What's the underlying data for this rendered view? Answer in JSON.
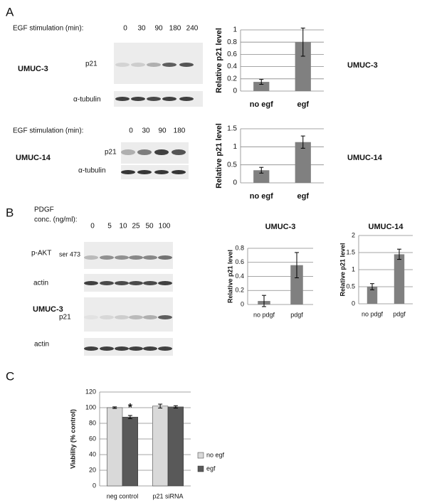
{
  "figure": {
    "panel_a": {
      "label": "A",
      "blot1": {
        "header": "EGF stimulation (min):",
        "lanes": [
          "0",
          "30",
          "90",
          "180",
          "240"
        ],
        "cell_line": "UMUC-3",
        "rows": [
          "p21",
          "α-tubulin"
        ]
      },
      "blot2": {
        "header": "EGF stimulation (min):",
        "lanes": [
          "0",
          "30",
          "90",
          "180"
        ],
        "cell_line": "UMUC-14",
        "rows": [
          "p21",
          "α-tubulin"
        ]
      }
    },
    "panel_b": {
      "label": "B",
      "header_line1": "PDGF",
      "header_line2": "conc. (ng/ml):",
      "lanes": [
        "0",
        "5",
        "10",
        "25",
        "50",
        "100"
      ],
      "cell_line": "UMUC-3",
      "rows": [
        {
          "main": "p-AKT",
          "sub": "ser 473"
        },
        "actin",
        "p21",
        "actin"
      ]
    },
    "panel_c": {
      "label": "C"
    }
  },
  "chart_data": [
    {
      "type": "bar",
      "side_label": "UMUC-3",
      "y_label": "Relative p21 level",
      "categories": [
        "no egf",
        "egf"
      ],
      "values": [
        0.15,
        0.8
      ],
      "errors": [
        0.04,
        0.23
      ],
      "color": "#808080",
      "ylim": [
        0,
        1
      ],
      "yticks": [
        0,
        0.2,
        0.4,
        0.6,
        0.8,
        1
      ],
      "grid": true
    },
    {
      "type": "bar",
      "side_label": "UMUC-14",
      "y_label": "Relative p21 level",
      "categories": [
        "no egf",
        "egf"
      ],
      "values": [
        0.35,
        1.13
      ],
      "errors": [
        0.08,
        0.17
      ],
      "color": "#808080",
      "ylim": [
        0,
        1.5
      ],
      "yticks": [
        0,
        0.5,
        1,
        1.5
      ],
      "grid": true
    },
    {
      "type": "bar",
      "title": "UMUC-3",
      "y_label": "Relative p21 level",
      "categories": [
        "no pdgf",
        "pdgf"
      ],
      "values": [
        0.05,
        0.56
      ],
      "errors": [
        0.08,
        0.18
      ],
      "color": "#808080",
      "ylim": [
        0,
        0.8
      ],
      "yticks": [
        0,
        0.2,
        0.4,
        0.6,
        0.8
      ],
      "grid": true
    },
    {
      "type": "bar",
      "title": "UMUC-14",
      "y_label": "Relative p21 level",
      "categories": [
        "no pdgf",
        "pdgf"
      ],
      "values": [
        0.5,
        1.45
      ],
      "errors": [
        0.09,
        0.15
      ],
      "color": "#808080",
      "ylim": [
        0,
        2
      ],
      "yticks": [
        0,
        0.5,
        1,
        1.5,
        2
      ],
      "grid": true
    },
    {
      "type": "grouped_bar",
      "y_label": "Viability (% control)",
      "categories": [
        "neg control",
        "p21 siRNA"
      ],
      "series": [
        {
          "name": "no egf",
          "color": "#d9d9d9",
          "values": [
            100,
            102
          ],
          "errors": [
            1,
            2.5
          ]
        },
        {
          "name": "egf",
          "color": "#595959",
          "values": [
            88,
            101
          ],
          "errors": [
            2,
            1.5
          ]
        }
      ],
      "annotation": "*",
      "legend": "right",
      "ylim": [
        0,
        120
      ],
      "yticks": [
        0,
        20,
        40,
        60,
        80,
        100,
        120
      ],
      "grid": true
    }
  ]
}
